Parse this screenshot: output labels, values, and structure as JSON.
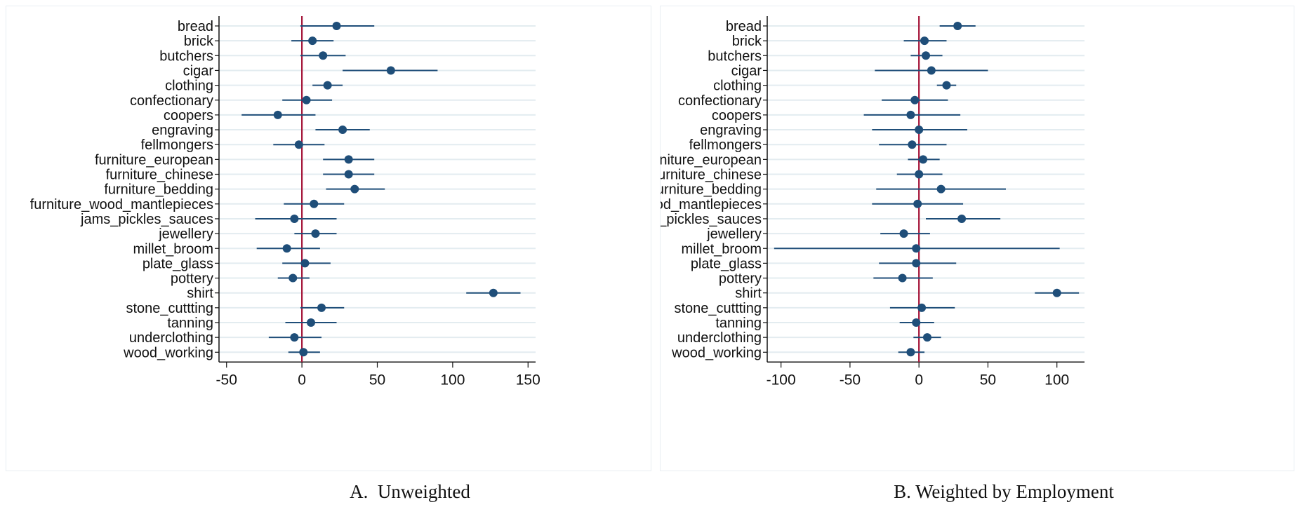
{
  "chart_data": [
    {
      "type": "scatter",
      "subtype": "coefficient-plot",
      "title": "",
      "xlabel": "",
      "ylabel": "",
      "categories": [
        "bread",
        "brick",
        "butchers",
        "cigar",
        "clothing",
        "confectionary",
        "coopers",
        "engraving",
        "fellmongers",
        "furniture_european",
        "furniture_chinese",
        "furniture_bedding",
        "furniture_wood_mantlepieces",
        "jams_pickles_sauces",
        "jewellery",
        "millet_broom",
        "plate_glass",
        "pottery",
        "shirt",
        "stone_cuttting",
        "tanning",
        "underclothing",
        "wood_working"
      ],
      "estimate": [
        23,
        7,
        14,
        59,
        17,
        3,
        -16,
        27,
        -2,
        31,
        31,
        35,
        8,
        -5,
        9,
        -10,
        2,
        -6,
        127,
        13,
        6,
        -5,
        1
      ],
      "ci_low": [
        -1,
        -7,
        -1,
        27,
        7,
        -13,
        -40,
        9,
        -19,
        14,
        14,
        16,
        -12,
        -31,
        -5,
        -30,
        -13,
        -16,
        109,
        -1,
        -11,
        -22,
        -9
      ],
      "ci_high": [
        48,
        21,
        29,
        90,
        27,
        20,
        9,
        45,
        15,
        48,
        48,
        55,
        28,
        23,
        23,
        12,
        19,
        5,
        145,
        28,
        23,
        13,
        12
      ],
      "xlim": [
        -55,
        155
      ],
      "xticks": [
        -50,
        0,
        50,
        100,
        150
      ],
      "reference_line": 0,
      "grid": true,
      "caption": "A.  Unweighted"
    },
    {
      "type": "scatter",
      "subtype": "coefficient-plot",
      "title": "",
      "xlabel": "",
      "ylabel": "",
      "categories": [
        "bread",
        "brick",
        "butchers",
        "cigar",
        "clothing",
        "confectionary",
        "coopers",
        "engraving",
        "fellmongers",
        "furniture_european",
        "furniture_chinese",
        "furniture_bedding",
        "furniture_wood_mantlepieces",
        "jams_pickles_sauces",
        "jewellery",
        "millet_broom",
        "plate_glass",
        "pottery",
        "shirt",
        "stone_cuttting",
        "tanning",
        "underclothing",
        "wood_working"
      ],
      "estimate": [
        28,
        4,
        5,
        9,
        20,
        -3,
        -6,
        0,
        -5,
        3,
        0,
        16,
        -1,
        31,
        -11,
        -2,
        -2,
        -12,
        100,
        2,
        -2,
        6,
        -6
      ],
      "ci_low": [
        15,
        -11,
        -6,
        -32,
        13,
        -27,
        -40,
        -34,
        -29,
        -8,
        -16,
        -31,
        -34,
        5,
        -28,
        -105,
        -29,
        -33,
        84,
        -21,
        -14,
        -4,
        -15
      ],
      "ci_high": [
        41,
        20,
        17,
        50,
        27,
        21,
        30,
        35,
        20,
        15,
        17,
        63,
        32,
        59,
        8,
        102,
        27,
        10,
        116,
        26,
        11,
        16,
        4
      ],
      "xlim": [
        -110,
        120
      ],
      "xticks": [
        -100,
        -50,
        0,
        50,
        100
      ],
      "reference_line": 0,
      "grid": true,
      "caption": "B. Weighted by Employment"
    }
  ],
  "colors": {
    "marker": "#1f4e79",
    "ci_line": "#1f4e79",
    "reference_line": "#a5163a",
    "grid": "#e3ecf0",
    "axis": "#111111"
  }
}
